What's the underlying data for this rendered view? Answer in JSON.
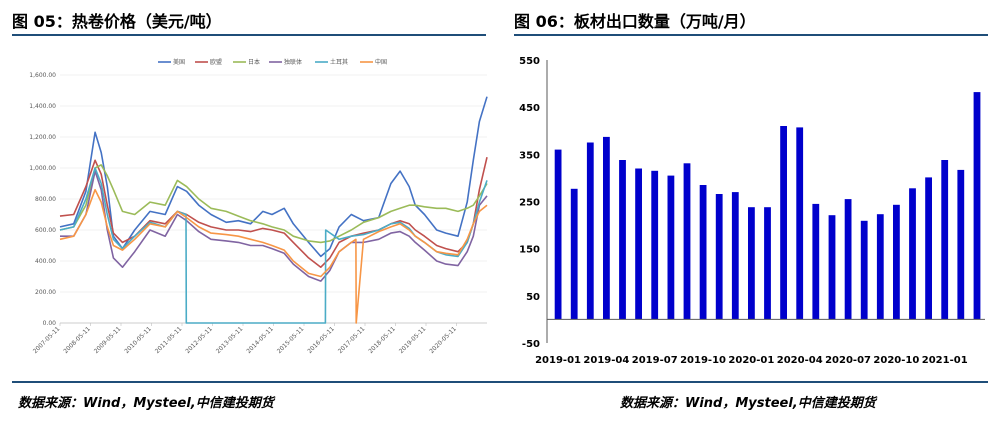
{
  "figures": {
    "left_title": "图 05：热卷价格（美元/吨）",
    "right_title": "图 06：板材出口数量（万吨/月）",
    "left_source": "数据来源：Wind，Mysteel,中信建投期货",
    "right_source": "数据来源：Wind，Mysteel,中信建投期货"
  },
  "chart_data": [
    {
      "type": "line",
      "title": "图 05：热卷价格（美元/吨）",
      "ylim": [
        0,
        1600
      ],
      "y_ticks": [
        "0.00",
        "200.00",
        "400.00",
        "600.00",
        "800.00",
        "1,000.00",
        "1,200.00",
        "1,400.00",
        "1,600.00"
      ],
      "x_tick_labels": [
        "2007-05-11",
        "2008-05-11",
        "2009-05-11",
        "2010-05-11",
        "2011-05-11",
        "2012-05-11",
        "2013-05-11",
        "2014-05-11",
        "2015-05-11",
        "2016-05-11",
        "2017-05-11",
        "2018-05-11",
        "2019-05-11",
        "2020-05-11"
      ],
      "x_start": 2007.35,
      "x_end": 2021.35,
      "series": [
        {
          "name": "美国",
          "color": "#4472c4",
          "x": [
            2007.35,
            2007.8,
            2008.2,
            2008.5,
            2008.7,
            2008.9,
            2009.1,
            2009.4,
            2009.8,
            2010.3,
            2010.8,
            2011.2,
            2011.5,
            2011.9,
            2012.3,
            2012.8,
            2013.2,
            2013.6,
            2014.0,
            2014.3,
            2014.7,
            2015.0,
            2015.5,
            2015.9,
            2016.2,
            2016.5,
            2016.9,
            2017.3,
            2017.8,
            2018.2,
            2018.5,
            2018.8,
            2019.0,
            2019.3,
            2019.7,
            2020.0,
            2020.4,
            2020.7,
            2020.9,
            2021.1,
            2021.35
          ],
          "y": [
            620,
            640,
            850,
            1230,
            1100,
            880,
            560,
            480,
            600,
            720,
            700,
            880,
            850,
            760,
            700,
            650,
            660,
            640,
            720,
            700,
            740,
            640,
            520,
            430,
            480,
            620,
            700,
            660,
            680,
            900,
            980,
            880,
            760,
            700,
            600,
            580,
            560,
            780,
            1050,
            1300,
            1460
          ]
        },
        {
          "name": "欧盟",
          "color": "#c0504d",
          "x": [
            2007.35,
            2007.8,
            2008.2,
            2008.5,
            2008.7,
            2008.9,
            2009.1,
            2009.4,
            2009.8,
            2010.3,
            2010.8,
            2011.2,
            2011.5,
            2011.9,
            2012.3,
            2012.8,
            2013.2,
            2013.6,
            2014.0,
            2014.3,
            2014.7,
            2015.0,
            2015.5,
            2015.9,
            2016.2,
            2016.5,
            2016.9,
            2017.3,
            2017.8,
            2018.2,
            2018.5,
            2018.8,
            2019.0,
            2019.3,
            2019.7,
            2020.0,
            2020.4,
            2020.7,
            2020.9,
            2021.1,
            2021.35
          ],
          "y": [
            690,
            700,
            880,
            1050,
            960,
            760,
            580,
            520,
            560,
            660,
            640,
            720,
            700,
            650,
            620,
            600,
            600,
            590,
            610,
            600,
            580,
            520,
            420,
            360,
            420,
            520,
            560,
            580,
            600,
            640,
            660,
            640,
            600,
            560,
            500,
            480,
            460,
            520,
            640,
            860,
            1070
          ]
        },
        {
          "name": "日本",
          "color": "#9bbb59",
          "x": [
            2007.35,
            2007.8,
            2008.2,
            2008.5,
            2008.7,
            2008.9,
            2009.1,
            2009.4,
            2009.8,
            2010.3,
            2010.8,
            2011.2,
            2011.5,
            2011.9,
            2012.3,
            2012.8,
            2013.2,
            2013.6,
            2014.0,
            2014.3,
            2014.7,
            2015.0,
            2015.5,
            2015.9,
            2016.2,
            2016.5,
            2016.9,
            2017.3,
            2017.8,
            2018.2,
            2018.5,
            2018.8,
            2019.0,
            2019.3,
            2019.7,
            2020.0,
            2020.4,
            2020.7,
            2020.9,
            2021.1,
            2021.35
          ],
          "y": [
            600,
            620,
            760,
            1000,
            1020,
            950,
            860,
            720,
            700,
            780,
            760,
            920,
            880,
            800,
            740,
            720,
            690,
            660,
            640,
            620,
            600,
            560,
            530,
            520,
            530,
            560,
            600,
            650,
            680,
            720,
            740,
            760,
            760,
            750,
            740,
            740,
            720,
            740,
            760,
            820,
            900
          ]
        },
        {
          "name": "独联体",
          "color": "#8064a2",
          "x": [
            2007.35,
            2007.8,
            2008.2,
            2008.5,
            2008.7,
            2008.9,
            2009.1,
            2009.4,
            2009.8,
            2010.3,
            2010.8,
            2011.2,
            2011.5,
            2011.9,
            2012.3,
            2012.8,
            2013.2,
            2013.6,
            2014.0,
            2014.3,
            2014.7,
            2015.0,
            2015.5,
            2015.9,
            2016.2,
            2016.5,
            2016.9,
            2017.3,
            2017.8,
            2018.2,
            2018.5,
            2018.8,
            2019.0,
            2019.3,
            2019.7,
            2020.0,
            2020.4,
            2020.7,
            2020.9,
            2021.1,
            2021.35
          ],
          "y": [
            560,
            560,
            700,
            980,
            860,
            600,
            420,
            360,
            460,
            600,
            560,
            700,
            660,
            590,
            540,
            530,
            520,
            500,
            500,
            480,
            450,
            380,
            300,
            270,
            340,
            460,
            520,
            520,
            540,
            580,
            590,
            560,
            520,
            470,
            400,
            380,
            370,
            460,
            560,
            760,
            820
          ]
        },
        {
          "name": "土耳其",
          "color": "#4bacc6",
          "x": [
            2007.35,
            2007.8,
            2008.2,
            2008.5,
            2008.7,
            2008.9,
            2009.1,
            2009.4,
            2009.8,
            2010.3,
            2010.8,
            2011.2,
            2011.48,
            2011.49,
            2016.05,
            2016.06,
            2016.5,
            2016.9,
            2017.3,
            2017.8,
            2018.2,
            2018.5,
            2018.8,
            2019.0,
            2019.3,
            2019.7,
            2020.0,
            2020.4,
            2020.7,
            2020.9,
            2021.1,
            2021.35
          ],
          "y": [
            600,
            620,
            800,
            1000,
            900,
            700,
            540,
            480,
            560,
            650,
            620,
            720,
            700,
            0,
            0,
            600,
            540,
            560,
            570,
            600,
            640,
            650,
            610,
            560,
            520,
            460,
            440,
            430,
            520,
            640,
            780,
            920
          ]
        },
        {
          "name": "中国",
          "color": "#f79646",
          "x": [
            2007.35,
            2007.8,
            2008.2,
            2008.5,
            2008.7,
            2008.9,
            2009.1,
            2009.4,
            2009.8,
            2010.3,
            2010.8,
            2011.2,
            2011.5,
            2011.9,
            2012.3,
            2012.8,
            2013.2,
            2013.6,
            2014.0,
            2014.3,
            2014.7,
            2015.0,
            2015.5,
            2015.9,
            2016.2,
            2016.5,
            2016.9,
            2017.05,
            2017.06,
            2017.3,
            2017.8,
            2018.2,
            2018.5,
            2018.8,
            2019.0,
            2019.3,
            2019.7,
            2020.0,
            2020.4,
            2020.7,
            2020.9,
            2021.1,
            2021.35
          ],
          "y": [
            540,
            560,
            700,
            860,
            780,
            620,
            500,
            470,
            540,
            640,
            620,
            720,
            680,
            620,
            580,
            570,
            560,
            540,
            520,
            500,
            470,
            400,
            320,
            300,
            360,
            460,
            520,
            540,
            0,
            540,
            590,
            620,
            640,
            600,
            560,
            520,
            460,
            450,
            440,
            540,
            640,
            720,
            760
          ]
        }
      ]
    },
    {
      "type": "bar",
      "title": "图 06：板材出口数量（万吨/月）",
      "ylim": [
        -50,
        550
      ],
      "y_ticks": [
        -50,
        50,
        150,
        250,
        350,
        450,
        550
      ],
      "x_tick_labels": [
        "2019-01",
        "2019-04",
        "2019-07",
        "2019-10",
        "2020-01",
        "2020-04",
        "2020-07",
        "2020-10",
        "2021-01"
      ],
      "categories": [
        "2019-01",
        "2019-02",
        "2019-03",
        "2019-04",
        "2019-05",
        "2019-06",
        "2019-07",
        "2019-08",
        "2019-09",
        "2019-10",
        "2019-11",
        "2019-12",
        "2020-01",
        "2020-02",
        "2020-03",
        "2020-04",
        "2020-05",
        "2020-06",
        "2020-07",
        "2020-08",
        "2020-09",
        "2020-10",
        "2020-11",
        "2020-12",
        "2021-01",
        "2021-02",
        "2021-03"
      ],
      "values": [
        360,
        277,
        375,
        387,
        338,
        320,
        315,
        305,
        331,
        285,
        266,
        270,
        238,
        238,
        410,
        407,
        245,
        221,
        255,
        209,
        223,
        243,
        278,
        301,
        338,
        317,
        482
      ],
      "color": "#0000cc"
    }
  ]
}
